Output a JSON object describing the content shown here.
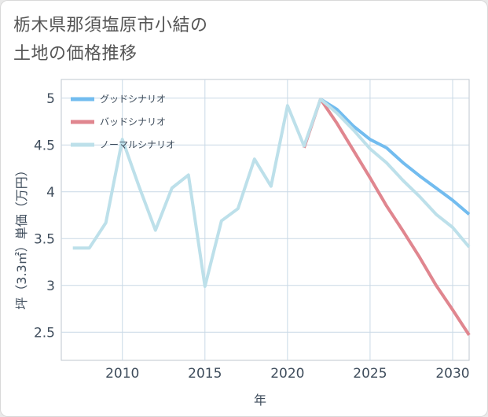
{
  "title": {
    "line1": "栃木県那須塩原市小結の",
    "line2": "土地の価格推移"
  },
  "chart_data": {
    "type": "line",
    "xlabel": "年",
    "ylabel": "坪（3.3㎡）単価（万円）",
    "xlim": [
      2006.3,
      2031
    ],
    "ylim": [
      2.2,
      5.2
    ],
    "xticks": [
      2010,
      2015,
      2020,
      2025,
      2030
    ],
    "yticks": [
      2.5,
      3,
      3.5,
      4,
      4.5,
      5
    ],
    "xtick_labels": [
      "2010",
      "2015",
      "2020",
      "2025",
      "2030"
    ],
    "ytick_labels": [
      "2.5",
      "3",
      "3.5",
      "4",
      "4.5",
      "5"
    ],
    "legend_position": "top-left",
    "grid": true,
    "series": [
      {
        "name": "グッドシナリオ",
        "color": "#72bcef",
        "x": [
          2022,
          2023,
          2024,
          2025,
          2026,
          2027,
          2028,
          2029,
          2030,
          2031
        ],
        "y": [
          4.99,
          4.88,
          4.7,
          4.56,
          4.47,
          4.31,
          4.17,
          4.04,
          3.91,
          3.76
        ]
      },
      {
        "name": "バッドシナリオ",
        "color": "#e0868f",
        "x": [
          2021,
          2022,
          2023,
          2024,
          2025,
          2026,
          2027,
          2028,
          2029,
          2030,
          2031
        ],
        "y": [
          4.47,
          4.99,
          4.73,
          4.44,
          4.15,
          3.85,
          3.58,
          3.3,
          3.0,
          2.74,
          2.47
        ]
      },
      {
        "name": "ノーマルシナリオ",
        "color": "#bde0ea",
        "x": [
          2007,
          2008,
          2009,
          2010,
          2011,
          2012,
          2013,
          2014,
          2015,
          2016,
          2017,
          2018,
          2019,
          2020,
          2021,
          2022,
          2023,
          2024,
          2025,
          2026,
          2027,
          2028,
          2029,
          2030,
          2031
        ],
        "y": [
          3.4,
          3.4,
          3.67,
          4.56,
          4.06,
          3.59,
          4.04,
          4.18,
          2.99,
          3.69,
          3.82,
          4.35,
          4.06,
          4.92,
          4.49,
          4.99,
          4.84,
          4.66,
          4.46,
          4.31,
          4.12,
          3.95,
          3.76,
          3.62,
          3.41
        ]
      }
    ]
  }
}
